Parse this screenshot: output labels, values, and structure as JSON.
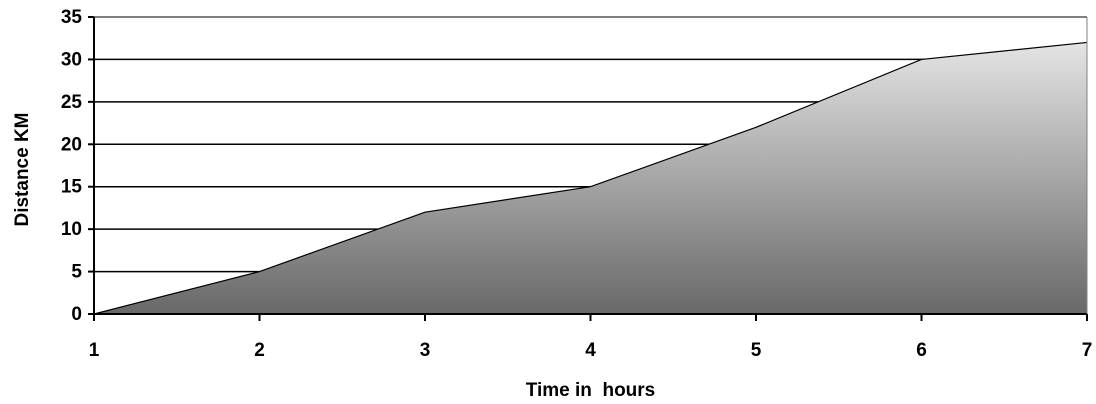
{
  "chart_data": {
    "type": "area",
    "title": "",
    "xlabel": "Time in  hours",
    "ylabel": "Distance KM",
    "x": [
      1,
      2,
      3,
      4,
      5,
      6,
      7
    ],
    "series": [
      {
        "values": [
          0,
          5,
          12,
          15,
          22,
          30,
          32
        ]
      }
    ],
    "xlim": [
      1,
      7
    ],
    "ylim": [
      0,
      35
    ],
    "xticks": [
      "1",
      "2",
      "3",
      "4",
      "5",
      "6",
      "7"
    ],
    "yticks": [
      "0",
      "5",
      "10",
      "15",
      "20",
      "25",
      "30",
      "35"
    ],
    "grid": "horizontal",
    "legend": "none",
    "fill_gradient": {
      "top": "#e4e4e4",
      "bottom": "#686868"
    }
  }
}
